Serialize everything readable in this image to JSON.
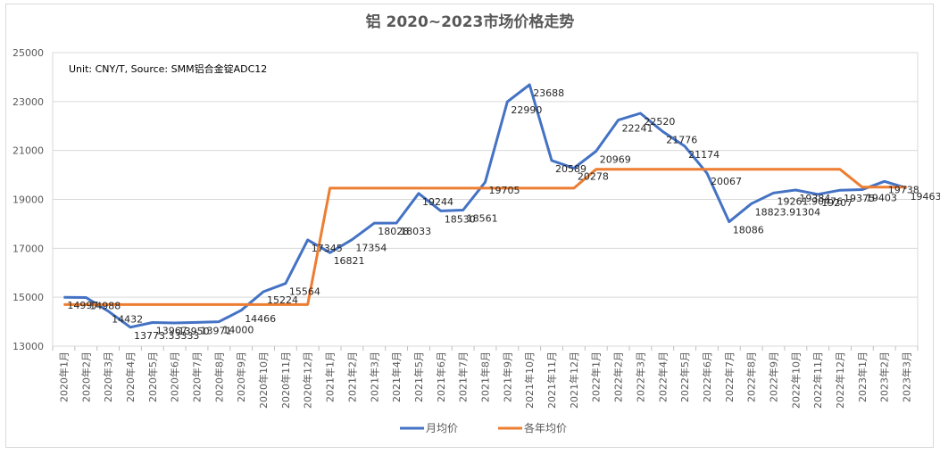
{
  "chart_data": {
    "type": "line",
    "title": "铝 2020~2023市场价格走势",
    "note": "Unit: CNY/T, Source: SMM铝合金锭ADC12",
    "ylim": [
      13000,
      25000
    ],
    "yticks": [
      13000,
      15000,
      17000,
      19000,
      21000,
      23000,
      25000
    ],
    "grid": true,
    "legend": "bottom",
    "categories": [
      "2020年1月",
      "2020年2月",
      "2020年3月",
      "2020年4月",
      "2020年5月",
      "2020年6月",
      "2020年7月",
      "2020年8月",
      "2020年9月",
      "2020年10月",
      "2020年11月",
      "2020年12月",
      "2021年1月",
      "2021年2月",
      "2021年3月",
      "2021年4月",
      "2021年5月",
      "2021年6月",
      "2021年7月",
      "2021年8月",
      "2021年9月",
      "2021年10月",
      "2021年11月",
      "2021年12月",
      "2022年1月",
      "2022年2月",
      "2022年3月",
      "2022年4月",
      "2022年5月",
      "2022年6月",
      "2022年7月",
      "2022年8月",
      "2022年9月",
      "2022年10月",
      "2022年11月",
      "2022年12月",
      "2023年1月",
      "2023年2月",
      "2023年3月"
    ],
    "series": [
      {
        "name": "月均价",
        "color": "#4472c4",
        "values": [
          14997,
          14988,
          14432,
          13773.33333,
          13967,
          13950,
          13971,
          14000,
          14466,
          15224,
          15564,
          17345,
          16821,
          17354,
          18028,
          18033,
          19244,
          18530,
          18561,
          19705,
          22990,
          23688,
          20589,
          20278,
          20969,
          22241,
          22520,
          21776,
          21174,
          20067,
          18086,
          18823.91304,
          19261.90476,
          19384,
          19207,
          19375,
          19403,
          19738,
          19463
        ],
        "labels": [
          "14997",
          "14988",
          "14432",
          "13773.33333",
          "13967",
          "13950",
          "13971",
          "14000",
          "14466",
          "15224",
          "15564",
          "17345",
          "16821",
          "17354",
          "18028",
          "18033",
          "19244",
          "18530",
          "18561",
          "19705",
          "22990",
          "23688",
          "20589",
          "20278",
          "20969",
          "22241",
          "22520",
          "21776",
          "21174",
          "20067",
          "18086",
          "18823.91304",
          "19261.90476",
          "19384",
          "19207",
          "19375",
          "19403",
          "19738",
          "19463"
        ]
      },
      {
        "name": "各年均价",
        "color": "#ed7d31",
        "values": [
          14700,
          14700,
          14700,
          14700,
          14700,
          14700,
          14700,
          14700,
          14700,
          14700,
          14700,
          14700,
          19460,
          19460,
          19460,
          19460,
          19460,
          19460,
          19460,
          19460,
          19460,
          19460,
          19460,
          19460,
          20230,
          20230,
          20230,
          20230,
          20230,
          20230,
          20230,
          20230,
          20230,
          20230,
          20230,
          20230,
          19500,
          19500,
          19500
        ]
      }
    ]
  }
}
